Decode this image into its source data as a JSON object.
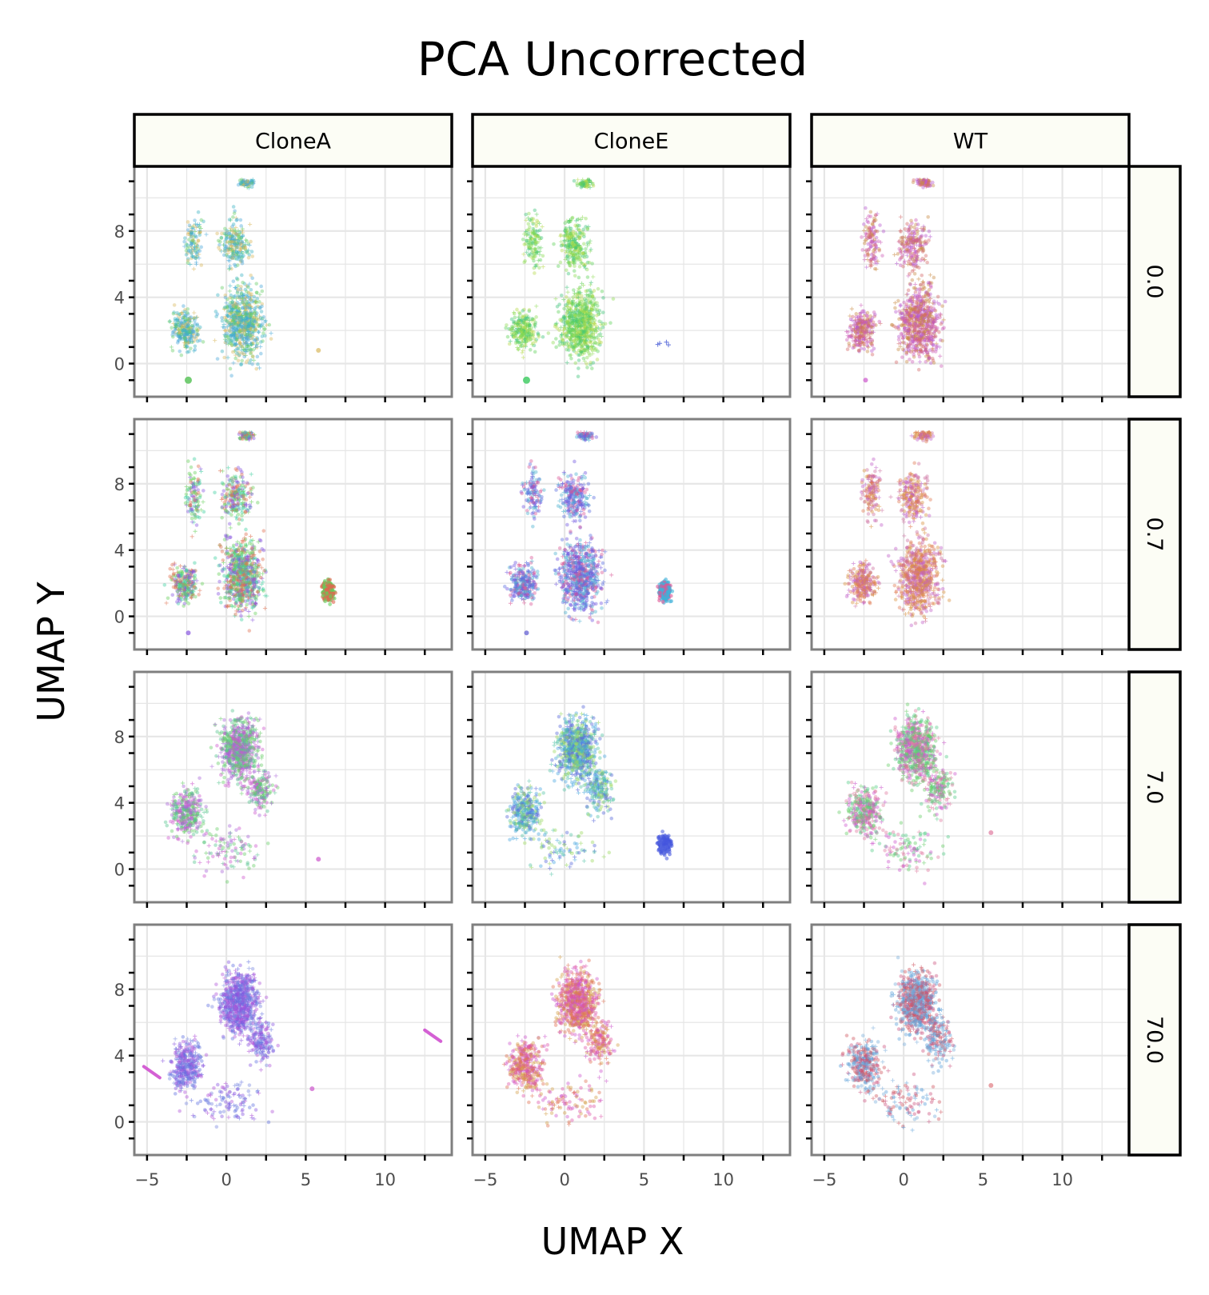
{
  "chart_data": {
    "type": "scatter",
    "title": "PCA Uncorrected",
    "xlabel": "UMAP X",
    "ylabel": "UMAP Y",
    "xlim": [
      -5.8,
      14.2
    ],
    "ylim": [
      -2.0,
      11.9
    ],
    "x_ticks": [
      -5,
      0,
      5,
      10
    ],
    "x_tick_labels": [
      "−5",
      "0",
      "5",
      "10"
    ],
    "y_ticks": [
      0,
      4,
      8
    ],
    "y_tick_labels": [
      "0",
      "4",
      "8"
    ],
    "grid": true,
    "legend": "none",
    "facet_columns": [
      "CloneA",
      "CloneE",
      "WT"
    ],
    "facet_rows": [
      "0.0",
      "0.7",
      "7.0",
      "70.0"
    ],
    "panel_background": "#ffffff",
    "strip_fill": "#fcfdf5",
    "grid_color": "#e6e6e6",
    "panels": [
      {
        "row": "0.0",
        "col": "CloneA",
        "colors": [
          "#3bb3c4",
          "#d9b85c",
          "#4aa8d8",
          "#66cc66"
        ],
        "extras": [
          {
            "kind": "blob",
            "x": -2.4,
            "y": -1.0,
            "color": "#5cc45c"
          },
          {
            "kind": "dot",
            "x": 5.8,
            "y": 0.8,
            "color": "#d9b85c"
          }
        ]
      },
      {
        "row": "0.0",
        "col": "CloneE",
        "colors": [
          "#5fd15a",
          "#8fdc55",
          "#3fc47a",
          "#b6d84a"
        ],
        "extras": [
          {
            "kind": "blob",
            "x": -2.4,
            "y": -1.0,
            "color": "#44cc66"
          },
          {
            "kind": "cross",
            "x": 6.2,
            "y": 1.1,
            "color": "#6677dd"
          }
        ]
      },
      {
        "row": "0.0",
        "col": "WT",
        "colors": [
          "#cc5cb8",
          "#c98a45",
          "#b85ad0",
          "#d46a6a"
        ],
        "extras": [
          {
            "kind": "dot",
            "x": -2.4,
            "y": -1.0,
            "color": "#cc55cc"
          }
        ]
      },
      {
        "row": "0.7",
        "col": "CloneA",
        "colors": [
          "#8855e0",
          "#66d05a",
          "#e07050",
          "#3fd0a0"
        ],
        "extras": [
          {
            "kind": "island",
            "x": 6.4,
            "y": 1.5,
            "color": "#e06850",
            "color2": "#5fd05a"
          },
          {
            "kind": "dot",
            "x": -2.4,
            "y": -1.0,
            "color": "#8855e0"
          }
        ]
      },
      {
        "row": "0.7",
        "col": "CloneE",
        "colors": [
          "#7055e0",
          "#5a6ee0",
          "#d85595",
          "#4ab0d0"
        ],
        "extras": [
          {
            "kind": "island",
            "x": 6.3,
            "y": 1.5,
            "color": "#40b0d8",
            "color2": "#e05595"
          },
          {
            "kind": "dot",
            "x": -2.4,
            "y": -1.0,
            "color": "#5a55d0"
          }
        ]
      },
      {
        "row": "0.7",
        "col": "WT",
        "colors": [
          "#d8913e",
          "#c060c8",
          "#e07a50",
          "#cc6fa0"
        ],
        "extras": []
      },
      {
        "row": "7.0",
        "col": "CloneA",
        "colors": [
          "#66cc66",
          "#cc55cc",
          "#55c490",
          "#aa66d8"
        ],
        "extras": [
          {
            "kind": "dot",
            "x": 5.8,
            "y": 0.6,
            "color": "#cc55cc"
          }
        ]
      },
      {
        "row": "7.0",
        "col": "CloneE",
        "colors": [
          "#5566d8",
          "#55c4a8",
          "#9ad860",
          "#4aa8e0"
        ],
        "extras": [
          {
            "kind": "island",
            "x": 6.3,
            "y": 1.5,
            "color": "#4455dd",
            "color2": "#5566e0"
          }
        ]
      },
      {
        "row": "7.0",
        "col": "WT",
        "colors": [
          "#66cc66",
          "#55cc88",
          "#cc55cc",
          "#e07aa0"
        ],
        "extras": [
          {
            "kind": "dot",
            "x": 5.5,
            "y": 2.2,
            "color": "#e07aa0"
          }
        ]
      },
      {
        "row": "70.0",
        "col": "CloneA",
        "colors": [
          "#8855e0",
          "#6070e0",
          "#b055d8",
          "#7a88e0"
        ],
        "extras": [
          {
            "kind": "streak",
            "x": 13.0,
            "y": 5.2,
            "color": "#cc44cc"
          },
          {
            "kind": "streak",
            "x": -4.7,
            "y": 3.0,
            "color": "#cc44cc"
          },
          {
            "kind": "dot",
            "x": 5.4,
            "y": 2.0,
            "color": "#cc55cc"
          }
        ]
      },
      {
        "row": "70.0",
        "col": "CloneE",
        "colors": [
          "#dd55aa",
          "#e07050",
          "#d4a04a",
          "#cc55cc"
        ],
        "extras": []
      },
      {
        "row": "70.0",
        "col": "WT",
        "colors": [
          "#d05560",
          "#5aa0d8",
          "#cc5580",
          "#7aaedc"
        ],
        "extras": [
          {
            "kind": "dot",
            "x": 5.5,
            "y": 2.2,
            "color": "#e07a80"
          }
        ]
      }
    ]
  }
}
